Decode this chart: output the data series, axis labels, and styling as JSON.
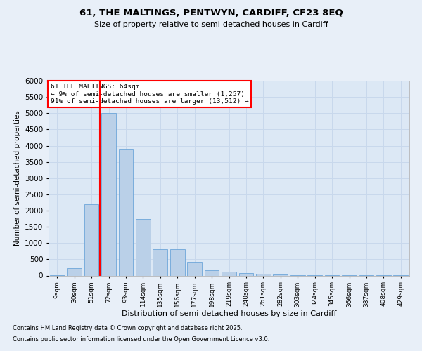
{
  "title1": "61, THE MALTINGS, PENTWYN, CARDIFF, CF23 8EQ",
  "title2": "Size of property relative to semi-detached houses in Cardiff",
  "xlabel": "Distribution of semi-detached houses by size in Cardiff",
  "ylabel": "Number of semi-detached properties",
  "categories": [
    "9sqm",
    "30sqm",
    "51sqm",
    "72sqm",
    "93sqm",
    "114sqm",
    "135sqm",
    "156sqm",
    "177sqm",
    "198sqm",
    "219sqm",
    "240sqm",
    "261sqm",
    "282sqm",
    "303sqm",
    "324sqm",
    "345sqm",
    "366sqm",
    "387sqm",
    "408sqm",
    "429sqm"
  ],
  "values": [
    10,
    230,
    2200,
    5000,
    3900,
    1750,
    810,
    810,
    420,
    160,
    110,
    75,
    45,
    28,
    18,
    10,
    7,
    4,
    3,
    2,
    1
  ],
  "bar_color": "#bad0e8",
  "bar_edge_color": "#5b9bd5",
  "vline_x": 2.5,
  "vline_color": "red",
  "ylim": [
    0,
    6000
  ],
  "yticks": [
    0,
    500,
    1000,
    1500,
    2000,
    2500,
    3000,
    3500,
    4000,
    4500,
    5000,
    5500,
    6000
  ],
  "annotation_title": "61 THE MALTINGS: 64sqm",
  "annotation_line1": "← 9% of semi-detached houses are smaller (1,257)",
  "annotation_line2": "91% of semi-detached houses are larger (13,512) →",
  "footnote1": "Contains HM Land Registry data © Crown copyright and database right 2025.",
  "footnote2": "Contains public sector information licensed under the Open Government Licence v3.0.",
  "bg_color": "#e8eff8",
  "plot_bg_color": "#dce8f5",
  "grid_color": "#c8d8ec"
}
